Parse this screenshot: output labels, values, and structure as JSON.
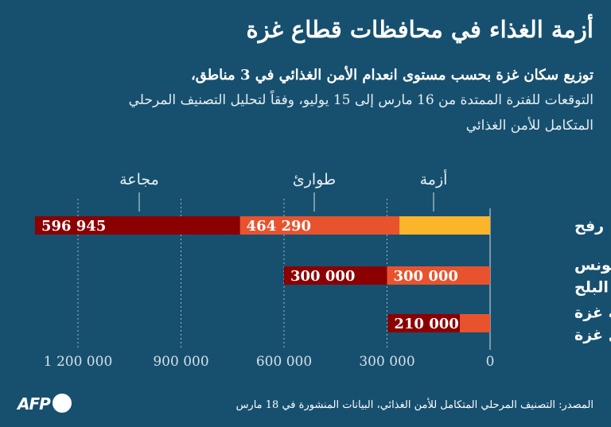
{
  "title": "أزمة الغذاء في محافظات قطاع غزة",
  "subtitle_lines": [
    "توزيع سكان غزة بحسب مستوى انعدام الأمن الغذائي في 3 مناطق،",
    "التوقعات للفترة الممتدة من 16 مارس إلى 15 يوليو، وفقاً لتحليل التصنيف المرحلي",
    "المتكامل للأمن الغذائي"
  ],
  "source": "المصدر: التصنيف المرحلي المتكامل للأمن الغذائي، البيانات المنشورة في 18 مارس",
  "logo": "AFP",
  "colors": {
    "background": "#17506f",
    "crisis": "#fbb52b",
    "emergency": "#e8532e",
    "famine": "#8b0000"
  },
  "chart_data": {
    "type": "bar",
    "orientation": "horizontal-stacked",
    "direction": "right-to-left",
    "categories": [
      "رفح",
      "خان يونس\nودير البلح",
      "مدينة غزة\nوشمال غزة"
    ],
    "series": [
      {
        "name": "أزمة",
        "color": "#fbb52b",
        "values": [
          264000,
          0,
          0
        ],
        "labels": [
          "",
          "",
          ""
        ]
      },
      {
        "name": "طوارئ",
        "color": "#e8532e",
        "values": [
          464290,
          300000,
          88000
        ],
        "labels": [
          "464 290",
          "300 000",
          ""
        ]
      },
      {
        "name": "مجاعة",
        "color": "#8b0000",
        "values": [
          596945,
          300000,
          210000
        ],
        "labels": [
          "596 945",
          "300 000",
          "210 000"
        ]
      }
    ],
    "xlim": [
      0,
      1300000
    ],
    "xticks": [
      0,
      300000,
      600000,
      900000,
      1200000
    ],
    "xtick_labels": [
      "0",
      "300 000",
      "600 000",
      "900 000",
      "1 200 000"
    ],
    "grid": true,
    "legend": "top, inline labels"
  }
}
